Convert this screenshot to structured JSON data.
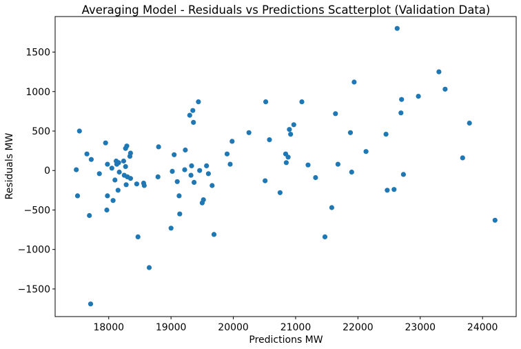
{
  "chart_data": {
    "type": "scatter",
    "title": "Averaging Model - Residuals vs Predictions Scatterplot (Validation Data)",
    "xlabel": "Predictions MW",
    "ylabel": "Residuals MW",
    "xlim": [
      17140,
      24540
    ],
    "ylim": [
      -1850,
      1950
    ],
    "xticks": [
      18000,
      19000,
      20000,
      21000,
      22000,
      23000,
      24000
    ],
    "yticks": [
      -1500,
      -1000,
      -500,
      0,
      500,
      1000,
      1500
    ],
    "grid": false,
    "marker_color": "#1f77b4",
    "x": [
      17480,
      17500,
      17530,
      17650,
      17690,
      17720,
      17710,
      17850,
      17950,
      17970,
      17980,
      17980,
      18050,
      18070,
      18100,
      18120,
      18130,
      18150,
      18160,
      18170,
      18240,
      18250,
      18270,
      18270,
      18280,
      18290,
      18300,
      18340,
      18350,
      18350,
      18450,
      18470,
      18560,
      18570,
      18650,
      18790,
      18800,
      19000,
      19020,
      19050,
      19100,
      19130,
      19140,
      19220,
      19230,
      19300,
      19320,
      19330,
      19350,
      19360,
      19370,
      19440,
      19460,
      19500,
      19520,
      19570,
      19600,
      19660,
      19690,
      19900,
      19950,
      19980,
      20250,
      20510,
      20520,
      20580,
      20750,
      20840,
      20850,
      20880,
      20900,
      20920,
      20970,
      21100,
      21200,
      21320,
      21470,
      21580,
      21640,
      21680,
      21880,
      21900,
      21940,
      22130,
      22450,
      22470,
      22580,
      22630,
      22690,
      22700,
      22730,
      22970,
      23300,
      23400,
      23680,
      23790,
      24200
    ],
    "y": [
      10,
      -320,
      500,
      210,
      -570,
      140,
      -1690,
      -40,
      350,
      -500,
      80,
      -320,
      30,
      -380,
      -120,
      120,
      80,
      -250,
      100,
      -20,
      120,
      -60,
      50,
      280,
      -180,
      310,
      -80,
      180,
      220,
      -100,
      -170,
      -840,
      -160,
      -190,
      -1230,
      -80,
      300,
      -730,
      -10,
      200,
      -140,
      -320,
      -550,
      10,
      260,
      700,
      -60,
      60,
      760,
      610,
      -150,
      870,
      0,
      -410,
      -370,
      60,
      -40,
      -190,
      -810,
      210,
      80,
      370,
      480,
      -130,
      870,
      390,
      -280,
      210,
      100,
      170,
      520,
      460,
      580,
      870,
      70,
      -90,
      -840,
      -470,
      720,
      80,
      480,
      -20,
      1120,
      240,
      460,
      -250,
      -240,
      1800,
      730,
      900,
      -50,
      940,
      1250,
      1030,
      160,
      600,
      -630
    ]
  }
}
